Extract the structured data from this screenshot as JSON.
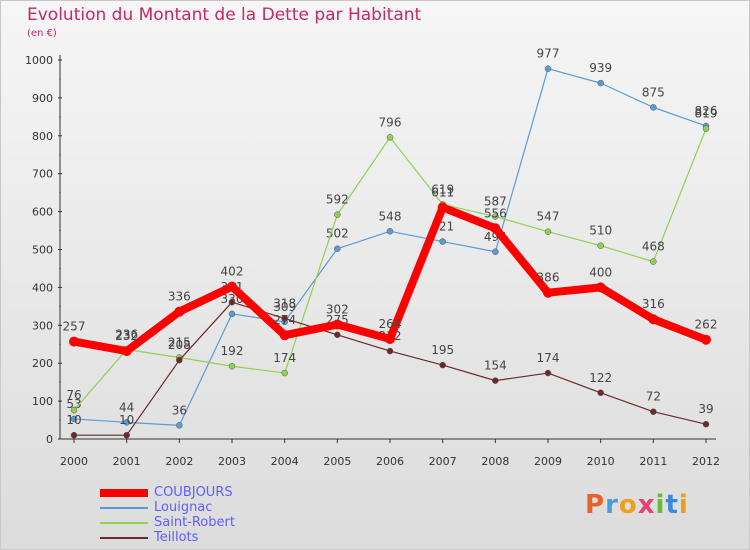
{
  "title": "Evolution du Montant de la Dette par Habitant",
  "unit": "(en €)",
  "brand": {
    "text": "Proxiti",
    "colors": [
      "#e8622a",
      "#4a9fd8",
      "#f0a020",
      "#e84070",
      "#6aba3a",
      "#3a8ad8",
      "#e8a020"
    ]
  },
  "chart_data": {
    "type": "line",
    "x": [
      "2000",
      "2001",
      "2002",
      "2003",
      "2004",
      "2005",
      "2006",
      "2007",
      "2008",
      "2009",
      "2010",
      "2011",
      "2012"
    ],
    "ylim": [
      0,
      1000
    ],
    "yticks": [
      0,
      100,
      200,
      300,
      400,
      500,
      600,
      700,
      800,
      900,
      1000
    ],
    "grid": false,
    "legend": "bottom-left",
    "series": [
      {
        "name": "Louignac",
        "color": "#5b9bd5",
        "values": [
          53,
          44,
          36,
          330,
          309,
          502,
          548,
          521,
          494,
          977,
          939,
          875,
          826
        ]
      },
      {
        "name": "Saint-Robert",
        "color": "#92d050",
        "values": [
          76,
          236,
          215,
          192,
          174,
          592,
          796,
          619,
          587,
          547,
          510,
          468,
          819
        ]
      },
      {
        "name": "Teillots",
        "color": "#6b2a2a",
        "values": [
          10,
          10,
          208,
          361,
          318,
          275,
          232,
          195,
          154,
          174,
          122,
          72,
          39
        ]
      },
      {
        "name": "COUBJOURS",
        "color": "#ff0000",
        "values": [
          257,
          232,
          336,
          402,
          274,
          302,
          264,
          611,
          556,
          386,
          400,
          316,
          262
        ]
      }
    ]
  }
}
